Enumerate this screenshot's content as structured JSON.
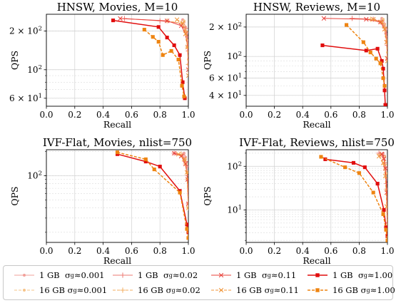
{
  "chart_data": [
    {
      "type": "line",
      "title": "HNSW, Movies, M=10",
      "xlabel": "Recall",
      "ylabel": "QPS",
      "yscale": "log",
      "xlim": [
        0.0,
        1.0
      ],
      "ylim": [
        52,
        270
      ],
      "xticks": [
        "0.0",
        "0.2",
        "0.4",
        "0.6",
        "0.8",
        "1.0"
      ],
      "yticks": [
        {
          "value": 60,
          "label": "6 × 10",
          "exp": "1"
        },
        {
          "value": 100,
          "label": "10",
          "exp": "2"
        },
        {
          "value": 200,
          "label": "2 × 10",
          "exp": "2"
        }
      ],
      "grid": true,
      "series": [
        {
          "name": "1 GB σg≈0.001",
          "x": [
            0.96,
            0.97,
            0.98,
            0.99,
            0.995,
            1.0
          ],
          "y": [
            245,
            235,
            215,
            195,
            150,
            110
          ]
        },
        {
          "name": "16 GB σg≈0.001",
          "x": [
            0.97,
            0.98,
            0.99,
            1.0
          ],
          "y": [
            240,
            210,
            170,
            120
          ]
        },
        {
          "name": "1 GB σg≈0.02",
          "x": [
            0.55,
            0.8,
            0.95,
            0.98,
            0.995,
            1.0
          ],
          "y": [
            250,
            240,
            230,
            210,
            180,
            140
          ]
        },
        {
          "name": "16 GB σg≈0.02",
          "x": [
            0.85,
            0.95,
            0.98,
            0.995,
            1.0
          ],
          "y": [
            240,
            230,
            200,
            150,
            110
          ]
        },
        {
          "name": "1 GB σg≈0.11",
          "x": [
            0.52,
            0.85,
            0.95,
            0.98,
            0.995,
            1.0
          ],
          "y": [
            250,
            240,
            220,
            190,
            150,
            100
          ]
        },
        {
          "name": "16 GB σg≈0.11",
          "x": [
            0.92,
            0.96,
            0.98,
            0.995,
            1.0
          ],
          "y": [
            245,
            230,
            190,
            150,
            90
          ]
        },
        {
          "name": "1 GB σg≈1.00",
          "x": [
            0.47,
            0.79,
            0.85,
            0.9,
            0.94,
            0.96,
            0.975
          ],
          "y": [
            242,
            215,
            178,
            155,
            130,
            80,
            60
          ]
        },
        {
          "name": "16 GB σg≈1.00",
          "x": [
            0.69,
            0.75,
            0.79,
            0.82,
            0.88,
            0.93,
            0.955,
            0.97
          ],
          "y": [
            205,
            180,
            165,
            130,
            140,
            120,
            75,
            62
          ]
        }
      ]
    },
    {
      "type": "line",
      "title": "HNSW, Reviews, M=10",
      "xlabel": "Recall",
      "ylabel": "QPS",
      "yscale": "log",
      "xlim": [
        0.0,
        1.0
      ],
      "ylim": [
        31,
        270
      ],
      "xticks": [
        "0.0",
        "0.2",
        "0.4",
        "0.6",
        "0.8",
        "1.0"
      ],
      "yticks": [
        {
          "value": 40,
          "label": "4 × 10",
          "exp": "1"
        },
        {
          "value": 60,
          "label": "6 × 10",
          "exp": "1"
        },
        {
          "value": 100,
          "label": "10",
          "exp": "2"
        },
        {
          "value": 200,
          "label": "2 × 10",
          "exp": "2"
        }
      ],
      "grid": true,
      "series": [
        {
          "name": "1 GB σg≈0.001",
          "x": [
            0.96,
            0.97,
            0.98,
            0.99,
            0.995,
            1.0
          ],
          "y": [
            245,
            235,
            215,
            190,
            140,
            95
          ]
        },
        {
          "name": "16 GB σg≈0.001",
          "x": [
            0.97,
            0.98,
            0.99,
            1.0
          ],
          "y": [
            240,
            210,
            160,
            110
          ]
        },
        {
          "name": "1 GB σg≈0.02",
          "x": [
            0.75,
            0.9,
            0.96,
            0.98,
            0.995,
            1.0
          ],
          "y": [
            245,
            240,
            225,
            200,
            170,
            130
          ]
        },
        {
          "name": "16 GB σg≈0.02",
          "x": [
            0.88,
            0.95,
            0.98,
            0.995,
            1.0
          ],
          "y": [
            240,
            225,
            195,
            145,
            100
          ]
        },
        {
          "name": "1 GB σg≈0.11",
          "x": [
            0.55,
            0.85,
            0.95,
            0.98,
            0.995,
            1.0
          ],
          "y": [
            245,
            240,
            225,
            190,
            140,
            95
          ]
        },
        {
          "name": "16 GB σg≈0.11",
          "x": [
            0.9,
            0.96,
            0.98,
            0.995,
            1.0
          ],
          "y": [
            240,
            225,
            190,
            140,
            90
          ]
        },
        {
          "name": "1 GB σg≈1.00",
          "x": [
            0.54,
            0.85,
            0.93,
            0.96,
            0.97,
            0.98,
            0.985
          ],
          "y": [
            130,
            115,
            120,
            90,
            75,
            45,
            32
          ]
        },
        {
          "name": "16 GB σg≈1.00",
          "x": [
            0.71,
            0.83,
            0.88,
            0.92,
            0.95,
            0.97,
            0.98
          ],
          "y": [
            210,
            140,
            110,
            95,
            85,
            60,
            50
          ]
        }
      ]
    },
    {
      "type": "line",
      "title": "IVF-Flat, Movies, nlist=750",
      "xlabel": "Recall",
      "ylabel": "QPS",
      "yscale": "log",
      "xlim": [
        0.0,
        1.0
      ],
      "ylim": [
        15,
        210
      ],
      "xticks": [
        "0.0",
        "0.2",
        "0.4",
        "0.6",
        "0.8",
        "1.0"
      ],
      "yticks": [
        {
          "value": 100,
          "label": "10",
          "exp": "2"
        }
      ],
      "grid": true,
      "series": [
        {
          "name": "1 GB σg≈0.001",
          "x": [
            0.97,
            0.98,
            0.99,
            0.995,
            1.0
          ],
          "y": [
            190,
            170,
            130,
            90,
            45
          ]
        },
        {
          "name": "16 GB σg≈0.001",
          "x": [
            0.98,
            0.99,
            1.0
          ],
          "y": [
            160,
            110,
            40
          ]
        },
        {
          "name": "1 GB σg≈0.02",
          "x": [
            0.9,
            0.96,
            0.98,
            0.995,
            1.0
          ],
          "y": [
            190,
            180,
            150,
            100,
            45
          ]
        },
        {
          "name": "16 GB σg≈0.02",
          "x": [
            0.95,
            0.98,
            0.995,
            1.0
          ],
          "y": [
            185,
            140,
            90,
            40
          ]
        },
        {
          "name": "1 GB σg≈0.11",
          "x": [
            0.9,
            0.95,
            0.98,
            0.995,
            1.0
          ],
          "y": [
            190,
            175,
            140,
            90,
            45
          ]
        },
        {
          "name": "16 GB σg≈0.11",
          "x": [
            0.93,
            0.97,
            0.99,
            1.0
          ],
          "y": [
            185,
            160,
            110,
            40
          ]
        },
        {
          "name": "1 GB σg≈1.00",
          "x": [
            0.5,
            0.7,
            0.8,
            0.94,
            0.99,
            1.0
          ],
          "y": [
            185,
            150,
            130,
            65,
            25,
            20
          ]
        },
        {
          "name": "16 GB σg≈1.00",
          "x": [
            0.5,
            0.7,
            0.76,
            0.94,
            0.99,
            1.0
          ],
          "y": [
            195,
            160,
            120,
            62,
            22,
            17
          ]
        }
      ]
    },
    {
      "type": "line",
      "title": "IVF-Flat, Reviews, nlist=750",
      "xlabel": "Recall",
      "ylabel": "QPS",
      "yscale": "log",
      "xlim": [
        0.0,
        1.0
      ],
      "ylim": [
        1.8,
        240
      ],
      "xticks": [
        "0.0",
        "0.2",
        "0.4",
        "0.6",
        "0.8",
        "1.0"
      ],
      "yticks": [
        {
          "value": 10,
          "label": "10",
          "exp": "1"
        },
        {
          "value": 100,
          "label": "10",
          "exp": "2"
        }
      ],
      "grid": true,
      "series": [
        {
          "name": "1 GB σg≈0.001",
          "x": [
            0.97,
            0.98,
            0.99,
            0.995,
            1.0
          ],
          "y": [
            200,
            160,
            90,
            30,
            5
          ]
        },
        {
          "name": "16 GB σg≈0.001",
          "x": [
            0.98,
            0.99,
            1.0
          ],
          "y": [
            170,
            70,
            4
          ]
        },
        {
          "name": "1 GB σg≈0.02",
          "x": [
            0.94,
            0.97,
            0.98,
            0.995,
            1.0
          ],
          "y": [
            200,
            180,
            120,
            40,
            5
          ]
        },
        {
          "name": "16 GB σg≈0.02",
          "x": [
            0.95,
            0.98,
            0.995,
            1.0
          ],
          "y": [
            190,
            110,
            30,
            4
          ]
        },
        {
          "name": "1 GB σg≈0.11",
          "x": [
            0.96,
            0.975,
            0.985,
            0.995,
            1.0
          ],
          "y": [
            190,
            150,
            90,
            25,
            4
          ]
        },
        {
          "name": "16 GB σg≈0.11",
          "x": [
            0.94,
            0.97,
            0.985,
            0.995,
            1.0
          ],
          "y": [
            170,
            120,
            60,
            12,
            3
          ]
        },
        {
          "name": "1 GB σg≈1.00",
          "x": [
            0.56,
            0.76,
            0.84,
            0.93,
            0.975,
            0.99,
            1.0
          ],
          "y": [
            145,
            120,
            95,
            40,
            10,
            4,
            2.5
          ]
        },
        {
          "name": "16 GB σg≈1.00",
          "x": [
            0.53,
            0.7,
            0.8,
            0.9,
            0.97,
            0.99,
            1.0
          ],
          "y": [
            165,
            95,
            70,
            25,
            8,
            3.5,
            2
          ]
        }
      ]
    }
  ],
  "legend": {
    "items": [
      {
        "size": "1 GB",
        "sigma": "σ",
        "sub": "g",
        "value": "≈0.001",
        "color": "#f2a09a",
        "marker": "dot",
        "dashed": false
      },
      {
        "size": "1 GB",
        "sigma": "σ",
        "sub": "g",
        "value": "≈0.02",
        "color": "#ee7a72",
        "marker": "plus",
        "dashed": false
      },
      {
        "size": "1 GB",
        "sigma": "σ",
        "sub": "g",
        "value": "≈0.11",
        "color": "#e8413a",
        "marker": "cross",
        "dashed": false
      },
      {
        "size": "1 GB",
        "sigma": "σ",
        "sub": "g",
        "value": "≈1.00",
        "color": "#e10d0d",
        "marker": "square",
        "dashed": false
      },
      {
        "size": "16 GB",
        "sigma": "σ",
        "sub": "g",
        "value": "≈0.001",
        "color": "#f6c48a",
        "marker": "dot",
        "dashed": true
      },
      {
        "size": "16 GB",
        "sigma": "σ",
        "sub": "g",
        "value": "≈0.02",
        "color": "#f3ad5f",
        "marker": "plus",
        "dashed": true
      },
      {
        "size": "16 GB",
        "sigma": "σ",
        "sub": "g",
        "value": "≈0.11",
        "color": "#f0963a",
        "marker": "cross",
        "dashed": true
      },
      {
        "size": "16 GB",
        "sigma": "σ",
        "sub": "g",
        "value": "≈1.00",
        "color": "#ee8411",
        "marker": "square",
        "dashed": true
      }
    ]
  }
}
